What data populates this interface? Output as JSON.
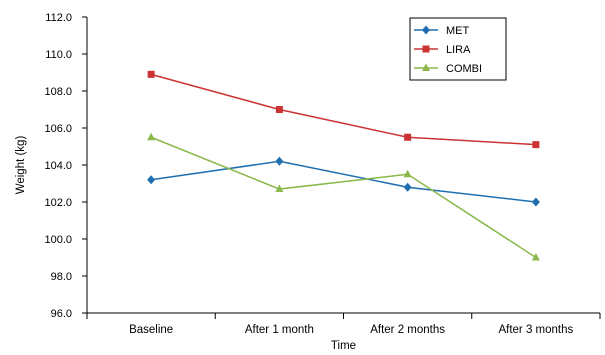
{
  "chart_data": {
    "type": "line",
    "title": "",
    "xlabel": "Time",
    "ylabel": "Weight (kg)",
    "categories": [
      "Baseline",
      "After 1 month",
      "After 2 months",
      "After 3 months"
    ],
    "ylim": [
      96.0,
      112.0
    ],
    "y_ticks": [
      "96.0",
      "98.0",
      "100.0",
      "102.0",
      "104.0",
      "106.0",
      "108.0",
      "110.0",
      "112.0"
    ],
    "grid": false,
    "legend_position": "top-right",
    "series": [
      {
        "name": "MET",
        "color": "#1f6fb0",
        "marker": "diamond",
        "values": [
          103.2,
          104.2,
          102.8,
          102.0
        ]
      },
      {
        "name": "LIRA",
        "color": "#cc3333",
        "marker": "square",
        "values": [
          108.9,
          107.0,
          105.5,
          105.1
        ]
      },
      {
        "name": "COMBI",
        "color": "#8ab84a",
        "marker": "triangle",
        "values": [
          105.5,
          102.7,
          103.5,
          99.0
        ]
      }
    ]
  }
}
